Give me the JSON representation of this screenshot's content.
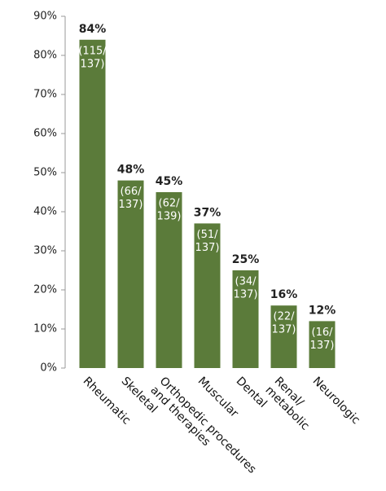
{
  "chart_data": {
    "type": "bar",
    "categories": [
      "Rheumatic",
      "Skeletal",
      "Orthopedic procedures and therapies",
      "Muscular",
      "Dental",
      "Renal/ metabolic",
      "Neurologic"
    ],
    "values": [
      84,
      48,
      45,
      37,
      25,
      16,
      12
    ],
    "value_labels": [
      "84%",
      "48%",
      "45%",
      "37%",
      "25%",
      "16%",
      "12%"
    ],
    "inner_labels": [
      [
        "(115/",
        "137)"
      ],
      [
        "(66/",
        "137)"
      ],
      [
        "(62/",
        "139)"
      ],
      [
        "(51/",
        "137)"
      ],
      [
        "(34/",
        "137)"
      ],
      [
        "(22/",
        "137)"
      ],
      [
        "(16/",
        "137)"
      ]
    ],
    "color": "#5b7b3a",
    "ylim": [
      0,
      90
    ],
    "yticks": [
      {
        "value": 0,
        "label": "0%"
      },
      {
        "value": 10,
        "label": "10%"
      },
      {
        "value": 20,
        "label": "20%"
      },
      {
        "value": 30,
        "label": "30%"
      },
      {
        "value": 40,
        "label": "40%"
      },
      {
        "value": 50,
        "label": "50%"
      },
      {
        "value": 60,
        "label": "60%"
      },
      {
        "value": 70,
        "label": "70%"
      },
      {
        "value": 80,
        "label": "80%"
      },
      {
        "value": 90,
        "label": "90%"
      }
    ]
  }
}
